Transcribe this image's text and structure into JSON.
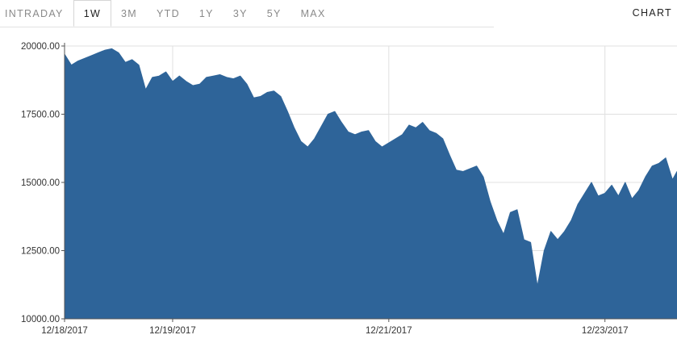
{
  "toolbar": {
    "tabs": [
      {
        "label": "INTRADAY",
        "active": false
      },
      {
        "label": "1W",
        "active": true
      },
      {
        "label": "3M",
        "active": false
      },
      {
        "label": "YTD",
        "active": false
      },
      {
        "label": "1Y",
        "active": false
      },
      {
        "label": "3Y",
        "active": false
      },
      {
        "label": "5Y",
        "active": false
      },
      {
        "label": "MAX",
        "active": false
      }
    ],
    "chart_label": "CHART"
  },
  "colors": {
    "area_fill": "#2e6499",
    "grid": "#e0e0e0",
    "axis": "#555555",
    "active_tab_text": "#222222",
    "inactive_tab_text": "#8a8a8a"
  },
  "chart_data": {
    "type": "area",
    "title": "",
    "xlabel": "",
    "ylabel": "",
    "ylim": [
      10000,
      20000
    ],
    "xlim": [
      "12/18/2017",
      "12/23/2017 16:00"
    ],
    "grid": true,
    "y_ticks": [
      "20000.00",
      "17500.00",
      "15000.00",
      "12500.00",
      "10000.00"
    ],
    "y_tick_values": [
      20000,
      17500,
      15000,
      12500,
      10000
    ],
    "x_ticks": [
      "12/18/2017",
      "12/19/2017",
      "12/21/2017",
      "12/23/2017"
    ],
    "series": [
      {
        "points": [
          [
            "12/18/2017 00:00",
            19700
          ],
          [
            "12/18/2017 01:30",
            19300
          ],
          [
            "12/18/2017 03:00",
            19450
          ],
          [
            "12/18/2017 04:30",
            19550
          ],
          [
            "12/18/2017 06:00",
            19650
          ],
          [
            "12/18/2017 07:30",
            19750
          ],
          [
            "12/18/2017 09:00",
            19850
          ],
          [
            "12/18/2017 10:30",
            19900
          ],
          [
            "12/18/2017 12:00",
            19750
          ],
          [
            "12/18/2017 13:30",
            19400
          ],
          [
            "12/18/2017 15:00",
            19500
          ],
          [
            "12/18/2017 16:30",
            19300
          ],
          [
            "12/18/2017 18:00",
            18400
          ],
          [
            "12/18/2017 19:30",
            18850
          ],
          [
            "12/18/2017 21:00",
            18900
          ],
          [
            "12/18/2017 22:30",
            19050
          ],
          [
            "12/19/2017 00:00",
            18700
          ],
          [
            "12/19/2017 01:30",
            18900
          ],
          [
            "12/19/2017 03:00",
            18700
          ],
          [
            "12/19/2017 04:30",
            18550
          ],
          [
            "12/19/2017 06:00",
            18600
          ],
          [
            "12/19/2017 07:30",
            18850
          ],
          [
            "12/19/2017 09:00",
            18900
          ],
          [
            "12/19/2017 10:30",
            18950
          ],
          [
            "12/19/2017 12:00",
            18850
          ],
          [
            "12/19/2017 13:30",
            18800
          ],
          [
            "12/19/2017 15:00",
            18900
          ],
          [
            "12/19/2017 16:30",
            18600
          ],
          [
            "12/19/2017 18:00",
            18100
          ],
          [
            "12/19/2017 19:30",
            18150
          ],
          [
            "12/19/2017 21:00",
            18300
          ],
          [
            "12/19/2017 22:30",
            18350
          ],
          [
            "12/20/2017 00:00",
            18150
          ],
          [
            "12/20/2017 01:30",
            17600
          ],
          [
            "12/20/2017 03:00",
            17000
          ],
          [
            "12/20/2017 04:30",
            16500
          ],
          [
            "12/20/2017 06:00",
            16300
          ],
          [
            "12/20/2017 07:30",
            16600
          ],
          [
            "12/20/2017 09:00",
            17050
          ],
          [
            "12/20/2017 10:30",
            17500
          ],
          [
            "12/20/2017 12:00",
            17600
          ],
          [
            "12/20/2017 13:30",
            17200
          ],
          [
            "12/20/2017 15:00",
            16850
          ],
          [
            "12/20/2017 16:30",
            16750
          ],
          [
            "12/20/2017 18:00",
            16850
          ],
          [
            "12/20/2017 19:30",
            16900
          ],
          [
            "12/20/2017 21:00",
            16500
          ],
          [
            "12/20/2017 22:30",
            16300
          ],
          [
            "12/21/2017 00:00",
            16450
          ],
          [
            "12/21/2017 01:30",
            16600
          ],
          [
            "12/21/2017 03:00",
            16750
          ],
          [
            "12/21/2017 04:30",
            17100
          ],
          [
            "12/21/2017 06:00",
            17000
          ],
          [
            "12/21/2017 07:30",
            17200
          ],
          [
            "12/21/2017 09:00",
            16900
          ],
          [
            "12/21/2017 10:30",
            16800
          ],
          [
            "12/21/2017 12:00",
            16600
          ],
          [
            "12/21/2017 13:30",
            16000
          ],
          [
            "12/21/2017 15:00",
            15450
          ],
          [
            "12/21/2017 16:30",
            15400
          ],
          [
            "12/21/2017 18:00",
            15500
          ],
          [
            "12/21/2017 19:30",
            15600
          ],
          [
            "12/21/2017 21:00",
            15200
          ],
          [
            "12/21/2017 22:30",
            14300
          ],
          [
            "12/22/2017 00:00",
            13600
          ],
          [
            "12/22/2017 01:30",
            13100
          ],
          [
            "12/22/2017 03:00",
            13900
          ],
          [
            "12/22/2017 04:30",
            14000
          ],
          [
            "12/22/2017 06:00",
            12900
          ],
          [
            "12/22/2017 07:30",
            12800
          ],
          [
            "12/22/2017 09:00",
            11200
          ],
          [
            "12/22/2017 10:30",
            12500
          ],
          [
            "12/22/2017 12:00",
            13200
          ],
          [
            "12/22/2017 13:30",
            12900
          ],
          [
            "12/22/2017 15:00",
            13200
          ],
          [
            "12/22/2017 16:30",
            13600
          ],
          [
            "12/22/2017 18:00",
            14200
          ],
          [
            "12/22/2017 19:30",
            14600
          ],
          [
            "12/22/2017 21:00",
            15000
          ],
          [
            "12/22/2017 22:30",
            14500
          ],
          [
            "12/23/2017 00:00",
            14600
          ],
          [
            "12/23/2017 01:30",
            14900
          ],
          [
            "12/23/2017 03:00",
            14500
          ],
          [
            "12/23/2017 04:30",
            15000
          ],
          [
            "12/23/2017 06:00",
            14400
          ],
          [
            "12/23/2017 07:30",
            14700
          ],
          [
            "12/23/2017 09:00",
            15200
          ],
          [
            "12/23/2017 10:30",
            15600
          ],
          [
            "12/23/2017 12:00",
            15700
          ],
          [
            "12/23/2017 13:30",
            15900
          ],
          [
            "12/23/2017 15:00",
            15100
          ],
          [
            "12/23/2017 16:00",
            15400
          ]
        ]
      }
    ]
  }
}
